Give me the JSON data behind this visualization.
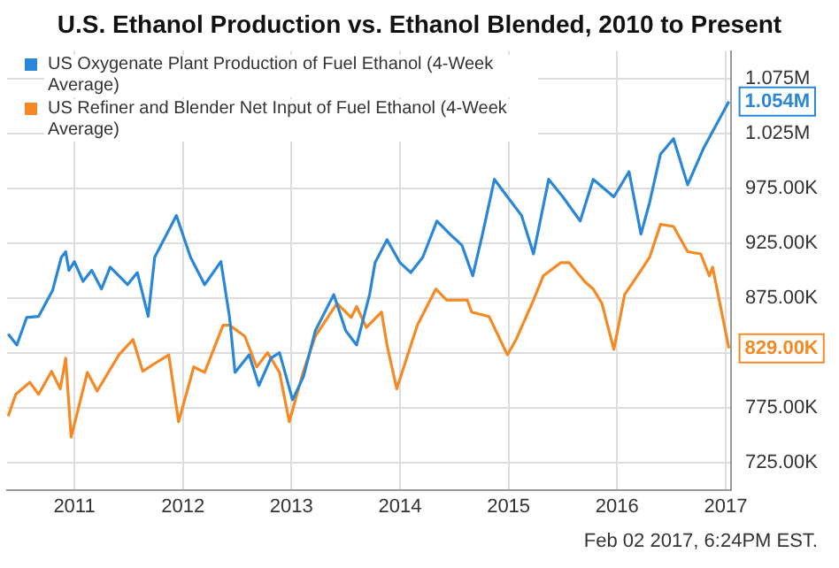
{
  "chart_data": {
    "type": "line",
    "title": "U.S. Ethanol Production vs. Ethanol Blended, 2010 to Present",
    "xlim": [
      2010.38,
      2017.05
    ],
    "xticks": [
      2011,
      2012,
      2013,
      2014,
      2015,
      2016,
      2017
    ],
    "ylim": [
      700000,
      1100000
    ],
    "yticks": [
      {
        "value": 725000,
        "label": "725.00K"
      },
      {
        "value": 775000,
        "label": "775.00K"
      },
      {
        "value": 825000,
        "label": null
      },
      {
        "value": 875000,
        "label": "875.00K"
      },
      {
        "value": 925000,
        "label": "925.00K"
      },
      {
        "value": 975000,
        "label": "975.00K"
      },
      {
        "value": 1025000,
        "label": "1.025M"
      },
      {
        "value": 1075000,
        "label": "1.075M"
      }
    ],
    "grid": true,
    "legend": "top left",
    "marker": "none",
    "line_style": "solid",
    "series": [
      {
        "name": "US Oxygenate Plant Production of Fuel Ethanol (4-Week Average)",
        "color": "#2a87d8",
        "x": [
          2010.39,
          2010.47,
          2010.56,
          2010.67,
          2010.8,
          2010.88,
          2010.92,
          2010.95,
          2011.0,
          2011.08,
          2011.16,
          2011.25,
          2011.33,
          2011.49,
          2011.58,
          2011.68,
          2011.74,
          2011.94,
          2012.07,
          2012.2,
          2012.35,
          2012.43,
          2012.48,
          2012.61,
          2012.7,
          2012.81,
          2012.89,
          2013.01,
          2013.11,
          2013.22,
          2013.39,
          2013.5,
          2013.6,
          2013.72,
          2013.77,
          2013.88,
          2014.0,
          2014.1,
          2014.21,
          2014.34,
          2014.46,
          2014.57,
          2014.67,
          2014.76,
          2014.87,
          2014.99,
          2015.12,
          2015.23,
          2015.37,
          2015.5,
          2015.66,
          2015.78,
          2015.97,
          2016.11,
          2016.22,
          2016.3,
          2016.4,
          2016.52,
          2016.65,
          2016.8,
          2017.03
        ],
        "values": [
          842000,
          832000,
          857000,
          858000,
          882000,
          912000,
          917000,
          900000,
          908000,
          890000,
          900000,
          883000,
          903000,
          887000,
          898000,
          858000,
          912000,
          950000,
          912000,
          887000,
          908000,
          857000,
          807000,
          823000,
          795000,
          820000,
          825000,
          782000,
          803000,
          845000,
          878000,
          845000,
          832000,
          878000,
          907000,
          928000,
          907000,
          898000,
          912000,
          945000,
          933000,
          923000,
          895000,
          933000,
          983000,
          967000,
          950000,
          915000,
          983000,
          967000,
          945000,
          983000,
          967000,
          990000,
          933000,
          962000,
          1006000,
          1020000,
          978000,
          1012000,
          1054000
        ]
      },
      {
        "name": "US Refiner and Blender Net Input of Fuel Ethanol (4-Week Average)",
        "color": "#f58a24",
        "x": [
          2010.39,
          2010.46,
          2010.59,
          2010.67,
          2010.79,
          2010.87,
          2010.92,
          2010.97,
          2011.12,
          2011.21,
          2011.41,
          2011.54,
          2011.63,
          2011.77,
          2011.87,
          2011.96,
          2012.1,
          2012.2,
          2012.37,
          2012.43,
          2012.57,
          2012.68,
          2012.78,
          2012.89,
          2012.98,
          2013.11,
          2013.22,
          2013.42,
          2013.55,
          2013.6,
          2013.69,
          2013.83,
          2013.88,
          2013.97,
          2014.16,
          2014.33,
          2014.43,
          2014.62,
          2014.66,
          2014.82,
          2014.99,
          2015.07,
          2015.23,
          2015.32,
          2015.48,
          2015.56,
          2015.7,
          2015.78,
          2015.86,
          2015.97,
          2016.07,
          2016.22,
          2016.3,
          2016.4,
          2016.52,
          2016.65,
          2016.77,
          2016.85,
          2016.88,
          2017.03
        ],
        "values": [
          767000,
          787000,
          798000,
          787000,
          808000,
          792000,
          820000,
          748000,
          807000,
          790000,
          823000,
          837000,
          808000,
          817000,
          823000,
          762000,
          812000,
          807000,
          850000,
          850000,
          840000,
          812000,
          825000,
          807000,
          762000,
          808000,
          840000,
          870000,
          857000,
          867000,
          848000,
          862000,
          832000,
          792000,
          850000,
          883000,
          873000,
          873000,
          862000,
          858000,
          823000,
          837000,
          873000,
          895000,
          907000,
          907000,
          890000,
          883000,
          870000,
          828000,
          878000,
          900000,
          912000,
          942000,
          940000,
          917000,
          915000,
          895000,
          903000,
          829000
        ]
      }
    ],
    "annotations": [
      {
        "text": "1.054M",
        "x": 2017.03,
        "y": 1054000
      },
      {
        "text": "829.00K",
        "x": 2017.03,
        "y": 829000
      },
      "Feb 02 2017, 6:24PM EST."
    ]
  }
}
